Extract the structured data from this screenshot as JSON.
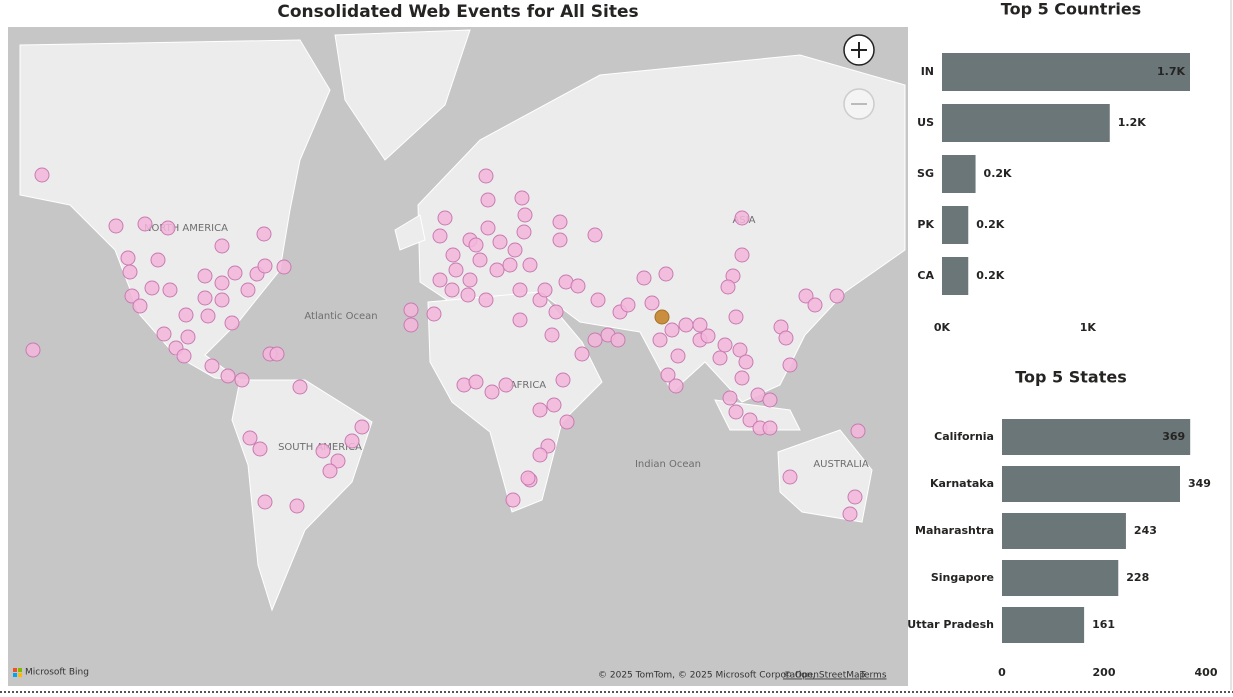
{
  "title": "Consolidated Web Events for All Sites",
  "map": {
    "labels": [
      "NORTH AMERICA",
      "Atlantic Ocean",
      "AFRICA",
      "SOUTH AMERICA",
      "Indian Ocean",
      "ASIA",
      "AUSTRALIA"
    ],
    "logo": "Microsoft Bing",
    "attribution": "© 2025 TomTom, © 2025 Microsoft Corporation,",
    "osm": "© OpenStreetMap",
    "terms": "Terms"
  },
  "chart_data": [
    {
      "type": "bar",
      "orientation": "horizontal",
      "title": "Top 5 Countries",
      "categories": [
        "IN",
        "US",
        "SG",
        "PK",
        "CA"
      ],
      "values": [
        1700,
        1150,
        230,
        180,
        180
      ],
      "value_labels": [
        "1.7K",
        "1.2K",
        "0.2K",
        "0.2K",
        "0.2K"
      ],
      "color": "#6b7678",
      "xlim": [
        0,
        1700
      ],
      "xticks": [
        {
          "value": 0,
          "label": "0K"
        },
        {
          "value": 1000,
          "label": "1K"
        }
      ]
    },
    {
      "type": "bar",
      "orientation": "horizontal",
      "title": "Top 5 States",
      "categories": [
        "California",
        "Karnataka",
        "Maharashtra",
        "Singapore",
        "Uttar Pradesh"
      ],
      "values": [
        369,
        349,
        243,
        228,
        161
      ],
      "color": "#6b7678",
      "xlim": [
        0,
        400
      ],
      "xticks": [
        0,
        200,
        400
      ]
    }
  ]
}
